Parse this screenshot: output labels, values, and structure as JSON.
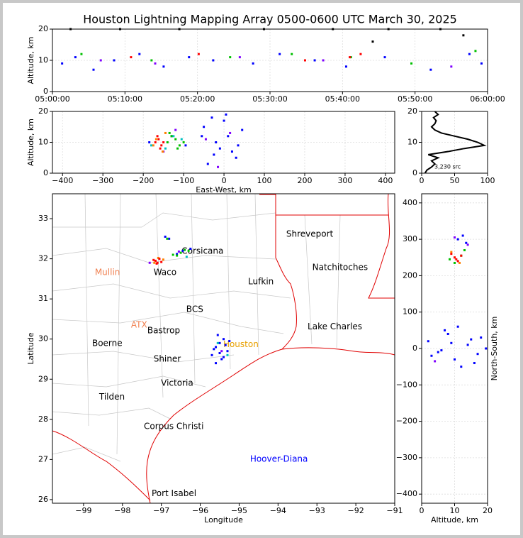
{
  "chart_data": [
    {
      "type": "scatter",
      "title": "Houston Lightning Mapping Array 0500-0600 UTC March 30, 2025",
      "ylabel": "Altitude, km",
      "xlim": [
        "05:00:00",
        "06:00:00"
      ],
      "xticks": [
        "05:00:00",
        "05:10:00",
        "05:20:00",
        "05:30:00",
        "05:40:00",
        "05:50:00",
        "06:00:00"
      ],
      "ylim": [
        0,
        20
      ],
      "yticks": [
        0,
        10,
        20
      ],
      "grid": true,
      "series": [
        {
          "color": "#0000ff",
          "x": [
            "05:01:20",
            "05:03:10",
            "05:05:40",
            "05:08:30",
            "05:12:00",
            "05:15:20",
            "05:18:50",
            "05:22:10",
            "05:27:40",
            "05:31:20",
            "05:36:10",
            "05:40:30",
            "05:45:50",
            "05:52:10",
            "05:57:30",
            "05:59:10"
          ],
          "values": [
            9,
            11,
            7,
            10,
            12,
            8,
            11,
            10,
            9,
            12,
            10,
            8,
            11,
            7,
            12,
            9
          ]
        },
        {
          "color": "#00c000",
          "x": [
            "05:04:00",
            "05:13:40",
            "05:24:30",
            "05:33:00",
            "05:41:10",
            "05:49:30",
            "05:58:20"
          ],
          "values": [
            12,
            10,
            11,
            12,
            11,
            9,
            13
          ]
        },
        {
          "color": "#ff0000",
          "x": [
            "05:10:50",
            "05:20:10",
            "05:34:50",
            "05:41:00",
            "05:42:30"
          ],
          "values": [
            11,
            12,
            10,
            11,
            12
          ]
        },
        {
          "color": "#8000ff",
          "x": [
            "05:06:40",
            "05:14:10",
            "05:25:50",
            "05:37:20",
            "05:55:00"
          ],
          "values": [
            10,
            9,
            11,
            10,
            8
          ]
        },
        {
          "color": "#000000",
          "x": [
            "05:02:30",
            "05:09:20",
            "05:17:30",
            "05:29:10",
            "05:38:40",
            "05:46:20",
            "05:53:30",
            "05:44:10",
            "05:56:40"
          ],
          "values": [
            20,
            20,
            20,
            20,
            20,
            20,
            20,
            16,
            18
          ]
        }
      ]
    },
    {
      "type": "scatter",
      "xlabel": "East-West, km",
      "ylabel": "Altitude, km",
      "xlim": [
        -425,
        423
      ],
      "xticks": [
        {
          "value": -400,
          "label": "−400"
        },
        {
          "value": -300,
          "label": "−300"
        },
        {
          "value": -200,
          "label": "−200"
        },
        {
          "value": -100,
          "label": "−100"
        },
        0,
        100,
        200,
        300,
        400
      ],
      "ylim": [
        0,
        20
      ],
      "yticks": [
        0,
        10,
        20
      ],
      "grid": true,
      "series": [
        {
          "color": "#0000ff",
          "x": [
            -185,
            -130,
            -95,
            -50,
            -30,
            -10,
            10,
            30,
            45,
            -40,
            -20,
            0,
            20,
            -55,
            5,
            -25,
            35
          ],
          "values": [
            10,
            12,
            9,
            15,
            18,
            8,
            12,
            5,
            14,
            3,
            10,
            17,
            7,
            12,
            19,
            6,
            9
          ]
        },
        {
          "color": "#00c0c0",
          "x": [
            -180,
            -125,
            -105,
            -145
          ],
          "values": [
            9,
            12,
            11,
            8
          ]
        },
        {
          "color": "#00c000",
          "x": [
            -140,
            -120,
            -110,
            -130,
            -100,
            -115,
            -135
          ],
          "values": [
            10,
            11,
            9,
            12,
            10,
            8,
            13
          ]
        },
        {
          "color": "#8000ff",
          "x": [
            -150,
            -120,
            -45,
            15,
            -15
          ],
          "values": [
            7,
            14,
            11,
            13,
            2
          ]
        },
        {
          "color": "#ff8000",
          "x": [
            -168,
            -145,
            -175,
            -152
          ],
          "values": [
            11,
            13,
            9,
            7
          ]
        },
        {
          "color": "#ff0000",
          "x": [
            -170,
            -162,
            -155,
            -165,
            -150,
            -158
          ],
          "values": [
            10,
            11,
            9,
            12,
            10,
            8
          ]
        }
      ]
    },
    {
      "type": "line",
      "annotation": "3,230 src",
      "color": "#000000",
      "xlim": [
        0,
        100
      ],
      "xticks": [
        0,
        50,
        100
      ],
      "ylim": [
        0,
        20
      ],
      "yticks": [
        0,
        10,
        20
      ],
      "grid": true,
      "x": [
        5,
        8,
        15,
        20,
        15,
        25,
        10,
        40,
        65,
        95,
        85,
        70,
        50,
        30,
        20,
        15,
        20,
        22,
        18,
        25,
        20
      ],
      "values": [
        0,
        1,
        2,
        3,
        4,
        5,
        6,
        7,
        8,
        9,
        10,
        11,
        12,
        13,
        14,
        15,
        16,
        17,
        18,
        19,
        20
      ]
    },
    {
      "type": "scatter",
      "xlabel": "Longitude",
      "ylabel": "Latitude",
      "xlim": [
        -99.8,
        -91
      ],
      "xticks": [
        {
          "value": -99,
          "label": "−99"
        },
        {
          "value": -98,
          "label": "−98"
        },
        {
          "value": -97,
          "label": "−97"
        },
        {
          "value": -96,
          "label": "−96"
        },
        {
          "value": -95,
          "label": "−95"
        },
        {
          "value": -94,
          "label": "−94"
        },
        {
          "value": -93,
          "label": "−93"
        },
        {
          "value": -92,
          "label": "−92"
        },
        {
          "value": -91,
          "label": "−91"
        }
      ],
      "ylim": [
        25.91,
        33.62
      ],
      "yticks": [
        26,
        27,
        28,
        29,
        30,
        31,
        32,
        33
      ],
      "grid": false,
      "cities": [
        {
          "label": "Shreveport",
          "lon": -93.79,
          "lat": 32.61,
          "color": "#000000"
        },
        {
          "label": "Natchitoches",
          "lon": -93.12,
          "lat": 31.78,
          "color": "#000000"
        },
        {
          "label": "Lufkin",
          "lon": -94.77,
          "lat": 31.43,
          "color": "#000000"
        },
        {
          "label": "Corsicana",
          "lon": -96.48,
          "lat": 32.19,
          "color": "#000000"
        },
        {
          "label": "Waco",
          "lon": -97.2,
          "lat": 31.66,
          "color": "#000000"
        },
        {
          "label": "Mullin",
          "lon": -98.71,
          "lat": 31.66,
          "color": "#f08050"
        },
        {
          "label": "BCS",
          "lon": -96.36,
          "lat": 30.74,
          "color": "#000000"
        },
        {
          "label": "ATX",
          "lon": -97.78,
          "lat": 30.35,
          "color": "#f08050"
        },
        {
          "label": "Bastrop",
          "lon": -97.36,
          "lat": 30.21,
          "color": "#000000"
        },
        {
          "label": "Lake Charles",
          "lon": -93.24,
          "lat": 30.3,
          "color": "#000000"
        },
        {
          "label": "Boerne",
          "lon": -98.78,
          "lat": 29.89,
          "color": "#000000"
        },
        {
          "label": "Houston",
          "lon": -95.41,
          "lat": 29.86,
          "color": "#e8a000"
        },
        {
          "label": "Shiner",
          "lon": -97.2,
          "lat": 29.5,
          "color": "#000000"
        },
        {
          "label": "Victoria",
          "lon": -97.01,
          "lat": 28.9,
          "color": "#000000"
        },
        {
          "label": "Tilden",
          "lon": -98.6,
          "lat": 28.55,
          "color": "#000000"
        },
        {
          "label": "Corpus Christi",
          "lon": -97.45,
          "lat": 27.82,
          "color": "#000000"
        },
        {
          "label": "Hoover-Diana",
          "lon": -94.72,
          "lat": 27.01,
          "color": "#0000ff"
        },
        {
          "label": "Port Isabel",
          "lon": -97.25,
          "lat": 26.15,
          "color": "#000000"
        }
      ],
      "series": [
        {
          "color": "#0000ff",
          "x": [
            -96.6,
            -96.45,
            -96.25,
            -96.9,
            -96.8,
            -95.6,
            -95.5,
            -95.4,
            -95.3,
            -95.7,
            -95.45,
            -95.55,
            -95.35,
            -95.25,
            -95.6,
            -95.5,
            -95.4,
            -95.65
          ],
          "values": [
            32.12,
            32.2,
            32.25,
            32.55,
            32.5,
            29.8,
            29.9,
            30.0,
            29.7,
            29.6,
            29.5,
            30.1,
            29.85,
            29.95,
            29.4,
            29.65,
            29.55,
            29.75
          ]
        },
        {
          "color": "#00c0c0",
          "x": [
            -96.35,
            -95.55,
            -95.3
          ],
          "values": [
            32.05,
            29.9,
            29.6
          ]
        },
        {
          "color": "#00c000",
          "x": [
            -96.7,
            -96.5,
            -96.3,
            -96.6,
            -96.85,
            -96.4
          ],
          "values": [
            32.1,
            32.15,
            32.2,
            32.08,
            32.5,
            32.22
          ]
        },
        {
          "color": "#8000ff",
          "x": [
            -97.3,
            -96.55,
            -95.45
          ],
          "values": [
            31.9,
            32.18,
            29.7
          ]
        },
        {
          "color": "#ff8000",
          "x": [
            -97.08,
            -96.95,
            -97.18
          ],
          "values": [
            32.02,
            31.98,
            31.9
          ]
        },
        {
          "color": "#ff0000",
          "x": [
            -97.15,
            -97.1,
            -97.05,
            -97.2,
            -97.0,
            -97.12
          ],
          "values": [
            31.95,
            31.9,
            32.0,
            31.97,
            31.92,
            31.88
          ]
        }
      ]
    },
    {
      "type": "scatter",
      "xlabel": "Altitude, km",
      "ylabel": "North-South, km",
      "xlim": [
        0,
        20
      ],
      "xticks": [
        0,
        10,
        20
      ],
      "ylim": [
        -425,
        425
      ],
      "yticks": [
        {
          "value": -400,
          "label": "−400"
        },
        {
          "value": -300,
          "label": "−300"
        },
        {
          "value": -200,
          "label": "−200"
        },
        {
          "value": -100,
          "label": "−100"
        },
        0,
        100,
        200,
        300,
        400
      ],
      "grid": true,
      "series": [
        {
          "color": "#0000ff",
          "x": [
            11,
            12.5,
            13.5,
            2,
            5,
            8,
            10,
            14,
            16,
            18,
            19.5,
            3,
            7,
            12,
            15,
            17,
            6,
            9,
            11
          ],
          "values": [
            300,
            310,
            290,
            20,
            -10,
            40,
            -30,
            10,
            -40,
            30,
            0,
            -20,
            50,
            -50,
            25,
            -15,
            -5,
            15,
            60
          ]
        },
        {
          "color": "#00c000",
          "x": [
            8.5,
            12,
            10,
            13
          ],
          "values": [
            245,
            255,
            235,
            270
          ]
        },
        {
          "color": "#8000ff",
          "x": [
            10,
            14,
            4
          ],
          "values": [
            305,
            285,
            -35
          ]
        },
        {
          "color": "#ff8000",
          "x": [
            9,
            11.5,
            10
          ],
          "values": [
            265,
            235,
            250
          ]
        },
        {
          "color": "#ff0000",
          "x": [
            10,
            11,
            9,
            12,
            10.5
          ],
          "values": [
            250,
            240,
            260,
            255,
            245
          ]
        }
      ]
    }
  ]
}
